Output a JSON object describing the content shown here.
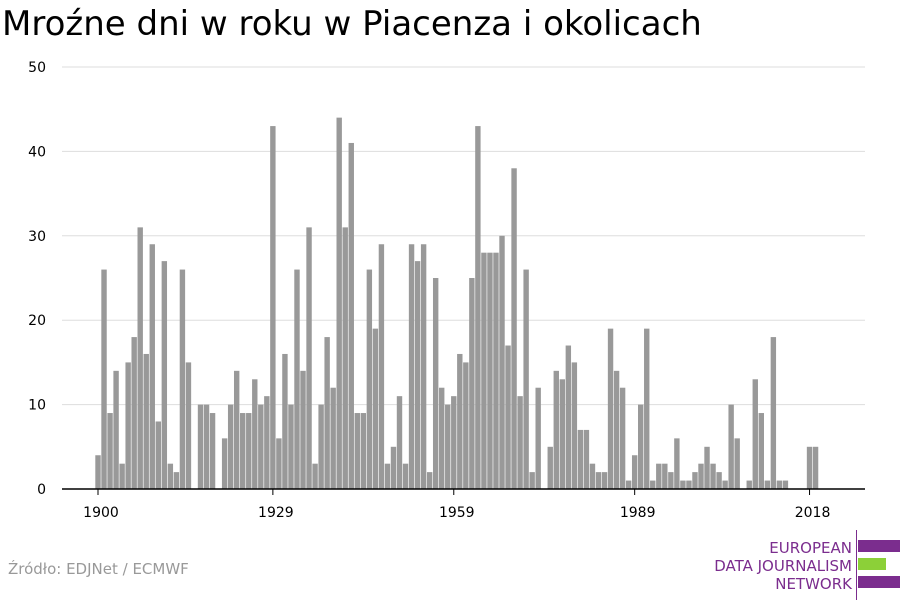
{
  "title": "Mroźne dni w roku w Piacenza i okolicach",
  "source": "Źródło: EDJNet / ECMWF",
  "logo": {
    "lines": [
      "EUROPEAN",
      "DATA JOURNALISM",
      "NETWORK"
    ],
    "colors": {
      "purple": "#7b2d8e",
      "green": "#8cd038"
    }
  },
  "colors": {
    "bar": "#999999",
    "grid": "#dddddd",
    "axis": "#000000"
  },
  "chart_data": {
    "type": "bar",
    "title": "Mroźne dni w roku w Piacenza i okolicach",
    "xlabel": "",
    "ylabel": "",
    "ylim": [
      0,
      50
    ],
    "yticks": [
      0,
      10,
      20,
      30,
      40,
      50
    ],
    "xticks": [
      1900,
      1929,
      1959,
      1989,
      2018
    ],
    "grid": true,
    "x": [
      1900,
      1901,
      1902,
      1903,
      1904,
      1905,
      1906,
      1907,
      1908,
      1909,
      1910,
      1911,
      1912,
      1913,
      1914,
      1915,
      1916,
      1917,
      1918,
      1919,
      1920,
      1921,
      1922,
      1923,
      1924,
      1925,
      1926,
      1927,
      1928,
      1929,
      1930,
      1931,
      1932,
      1933,
      1934,
      1935,
      1936,
      1937,
      1938,
      1939,
      1940,
      1941,
      1942,
      1943,
      1944,
      1945,
      1946,
      1947,
      1948,
      1949,
      1950,
      1951,
      1952,
      1953,
      1954,
      1955,
      1956,
      1957,
      1958,
      1959,
      1960,
      1961,
      1962,
      1963,
      1964,
      1965,
      1966,
      1967,
      1968,
      1969,
      1970,
      1971,
      1972,
      1973,
      1974,
      1975,
      1976,
      1977,
      1978,
      1979,
      1980,
      1981,
      1982,
      1983,
      1984,
      1985,
      1986,
      1987,
      1988,
      1989,
      1990,
      1991,
      1992,
      1993,
      1994,
      1995,
      1996,
      1997,
      1998,
      1999,
      2000,
      2001,
      2002,
      2003,
      2004,
      2005,
      2006,
      2007,
      2008,
      2009,
      2010,
      2011,
      2012,
      2013,
      2014,
      2015,
      2016,
      2017,
      2018,
      2019
    ],
    "values": [
      4,
      26,
      9,
      14,
      3,
      15,
      18,
      31,
      16,
      29,
      8,
      27,
      3,
      2,
      26,
      15,
      0,
      10,
      10,
      9,
      0,
      6,
      10,
      14,
      9,
      9,
      13,
      10,
      11,
      43,
      6,
      16,
      10,
      26,
      14,
      31,
      3,
      10,
      18,
      12,
      44,
      31,
      41,
      9,
      9,
      26,
      19,
      29,
      3,
      5,
      11,
      3,
      29,
      27,
      29,
      2,
      25,
      12,
      10,
      11,
      16,
      15,
      25,
      43,
      28,
      28,
      28,
      30,
      17,
      38,
      11,
      26,
      2,
      12,
      0,
      5,
      14,
      13,
      17,
      15,
      7,
      7,
      3,
      2,
      2,
      19,
      14,
      12,
      1,
      4,
      10,
      19,
      1,
      3,
      3,
      2,
      6,
      1,
      1,
      2,
      3,
      5,
      3,
      2,
      1,
      10,
      6,
      0,
      1,
      13,
      9,
      1,
      18,
      1,
      1,
      0,
      0,
      0,
      5,
      5
    ]
  }
}
